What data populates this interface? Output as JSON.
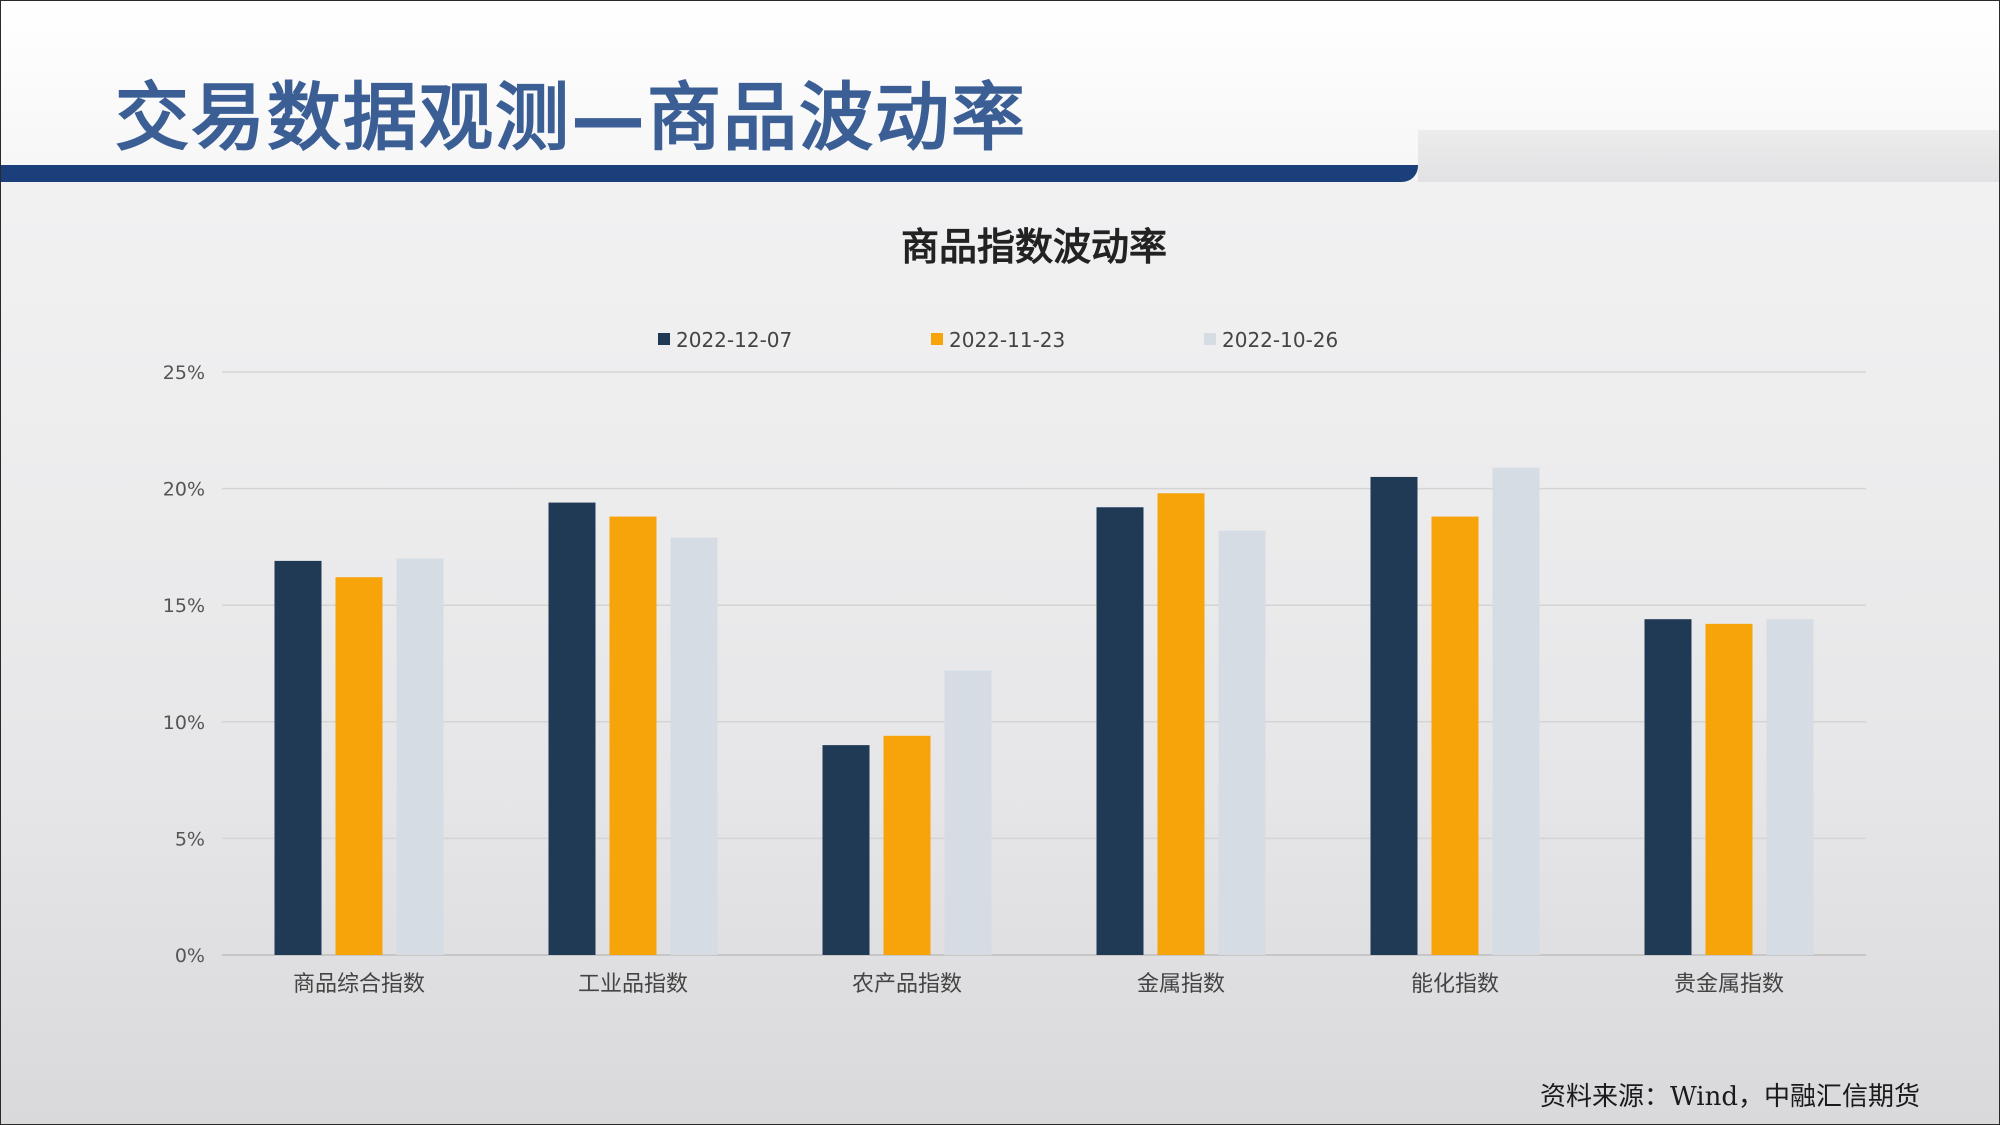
{
  "page": {
    "title": "交易数据观测—商品波动率",
    "source": "资料来源：Wind，中融汇信期货"
  },
  "colors": {
    "title": "#3b5f95",
    "rule": "#1b3f7a"
  },
  "chart_data": {
    "type": "bar",
    "title": "商品指数波动率",
    "xlabel": "",
    "ylabel": "",
    "categories": [
      "商品综合指数",
      "工业品指数",
      "农产品指数",
      "金属指数",
      "能化指数",
      "贵金属指数"
    ],
    "series": [
      {
        "name": "2022-12-07",
        "color": "#203a56",
        "values": [
          16.9,
          19.4,
          9.0,
          19.2,
          20.5,
          14.4
        ]
      },
      {
        "name": "2022-11-23",
        "color": "#f7a30a",
        "values": [
          16.2,
          18.8,
          9.4,
          19.8,
          18.8,
          14.2
        ]
      },
      {
        "name": "2022-10-26",
        "color": "#d5dce4",
        "values": [
          17.0,
          17.9,
          12.2,
          18.2,
          20.9,
          14.4
        ]
      }
    ],
    "yticks": [
      "0%",
      "5%",
      "10%",
      "15%",
      "20%",
      "25%"
    ],
    "ylim": [
      0,
      25
    ],
    "grid": true,
    "legend": "top-center"
  }
}
